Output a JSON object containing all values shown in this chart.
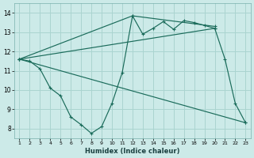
{
  "xlabel": "Humidex (Indice chaleur)",
  "background_color": "#cceae8",
  "grid_color": "#aad4d0",
  "line_color": "#1a6b5a",
  "xlim": [
    0.5,
    23.5
  ],
  "ylim": [
    7.5,
    14.5
  ],
  "xticks": [
    1,
    2,
    3,
    4,
    5,
    6,
    7,
    8,
    9,
    10,
    11,
    12,
    13,
    14,
    15,
    16,
    17,
    18,
    19,
    20,
    21,
    22,
    23
  ],
  "yticks": [
    8,
    9,
    10,
    11,
    12,
    13,
    14
  ],
  "series_main": [
    [
      1,
      11.6
    ],
    [
      2,
      11.5
    ],
    [
      3,
      11.1
    ],
    [
      4,
      10.1
    ],
    [
      5,
      9.7
    ],
    [
      6,
      8.6
    ],
    [
      7,
      8.2
    ],
    [
      8,
      7.75
    ],
    [
      9,
      8.1
    ],
    [
      10,
      9.3
    ],
    [
      11,
      10.9
    ],
    [
      12,
      13.85
    ],
    [
      13,
      12.9
    ],
    [
      14,
      13.2
    ],
    [
      15,
      13.55
    ],
    [
      16,
      13.15
    ],
    [
      17,
      13.6
    ],
    [
      18,
      13.5
    ],
    [
      19,
      13.35
    ],
    [
      20,
      13.2
    ],
    [
      21,
      11.6
    ],
    [
      22,
      9.3
    ],
    [
      23,
      8.3
    ]
  ],
  "series_diag1": [
    [
      1,
      11.6
    ],
    [
      12,
      13.85
    ],
    [
      20,
      13.3
    ]
  ],
  "series_diag2": [
    [
      1,
      11.6
    ],
    [
      20,
      13.2
    ]
  ],
  "series_diag3": [
    [
      1,
      11.6
    ],
    [
      23,
      8.3
    ]
  ]
}
